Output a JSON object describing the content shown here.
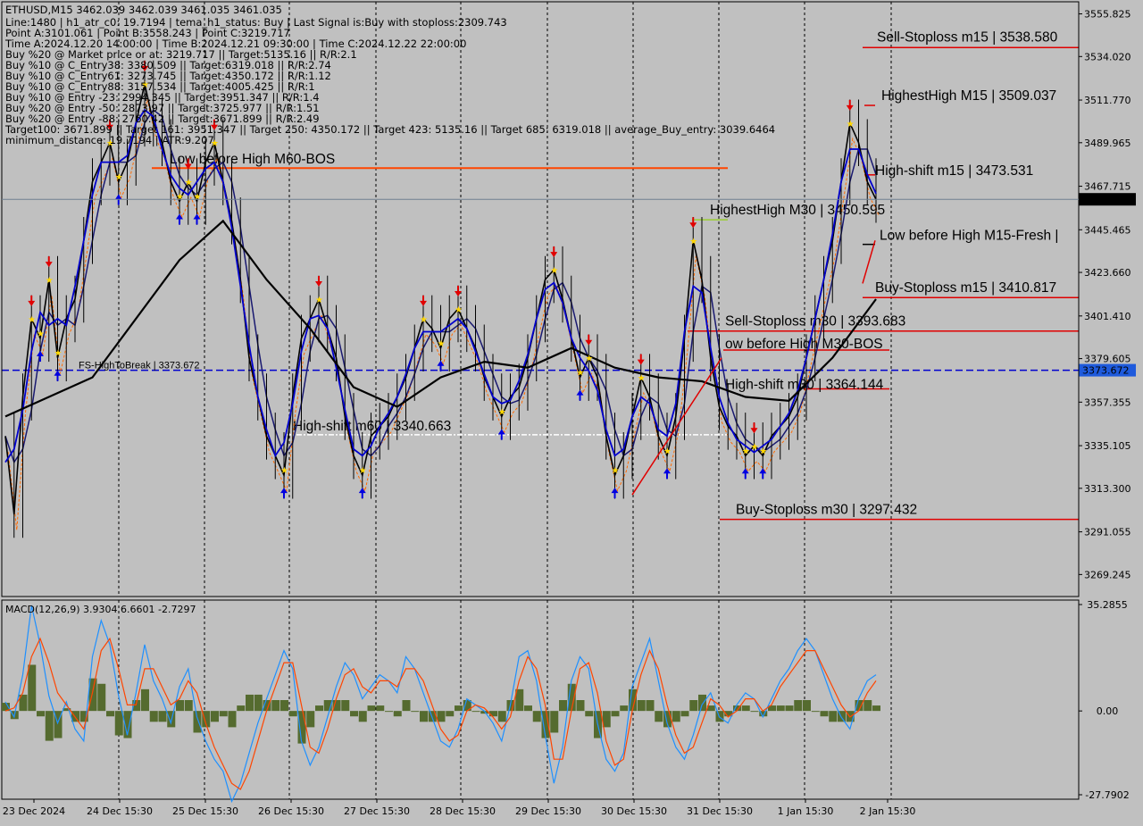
{
  "header": {
    "symbol_line": "ETHUSD,M15  3462.039 3462.039 3461.035 3461.035",
    "lines": [
      "Line:1480 | h1_atr_c0: 19.7194 | tema_h1_status: Buy | Last Signal is:Buy with stoploss:2309.743",
      "Point A:3101.061 | Point B:3558.243 | Point C:3219.717",
      "Time A:2024.12.20 14:00:00 | Time B:2024.12.21 09:30:00 | Time C:2024.12.22 22:00:00",
      "Buy %20 @ Market price or at: 3219.717 || Target:5135.16 || R/R:2.1",
      "Buy %10 @ C_Entry38: 3380.509 || Target:6319.018 || R/R:2.74",
      "Buy %10 @ C_Entry61: 3273.745 || Target:4350.172 || R/R:1.12",
      "Buy %10 @ C_Entry88: 3157.534 || Target:4005.425 || R/R:1",
      "Buy %10 @ Entry -23: 2994.345 || Target:3951.347 || R/R:1.4",
      "Buy %20 @ Entry -50: 2873.97 || Target:3725.977 || R/R:1.51",
      "Buy %20 @ Entry -88: 2760.42 || Target:3671.899 || R/R:2.49",
      "Target100: 3671.899 || Target 161: 3951.347 || Target 250: 4350.172 || Target 423: 5135.16 || Target 685: 6319.018 || average_Buy_entry: 3039.6464",
      "minimum_distance: 19.7194 | ATR:9.207"
    ]
  },
  "chart_data": {
    "type": "line",
    "symbol": "ETHUSD",
    "timeframe": "M15",
    "ohlc_last": {
      "open": 3462.039,
      "high": 3462.039,
      "low": 3461.035,
      "close": 3461.035
    },
    "current_price": "3461.035",
    "ylim": [
      3258,
      3562
    ],
    "y_ticks": [
      "3555.825",
      "3534.020",
      "3511.770",
      "3489.965",
      "3467.715",
      "3445.465",
      "3423.660",
      "3401.410",
      "3379.605",
      "3357.355",
      "3335.105",
      "3313.300",
      "3291.055",
      "3269.245"
    ],
    "x_ticks": [
      "23 Dec 2024",
      "24 Dec 15:30",
      "25 Dec 15:30",
      "26 Dec 15:30",
      "27 Dec 15:30",
      "28 Dec 15:30",
      "29 Dec 15:30",
      "30 Dec 15:30",
      "31 Dec 15:30",
      "1 Jan 15:30",
      "2 Jan 15:30"
    ],
    "price_path": [
      [
        0,
        3340
      ],
      [
        1,
        3300
      ],
      [
        2,
        3360
      ],
      [
        3,
        3400
      ],
      [
        4,
        3390
      ],
      [
        5,
        3420
      ],
      [
        6,
        3380
      ],
      [
        7,
        3400
      ],
      [
        8,
        3410
      ],
      [
        9,
        3440
      ],
      [
        10,
        3470
      ],
      [
        11,
        3480
      ],
      [
        12,
        3490
      ],
      [
        13,
        3470
      ],
      [
        14,
        3480
      ],
      [
        15,
        3500
      ],
      [
        16,
        3520
      ],
      [
        17,
        3500
      ],
      [
        18,
        3490
      ],
      [
        19,
        3470
      ],
      [
        20,
        3460
      ],
      [
        21,
        3470
      ],
      [
        22,
        3460
      ],
      [
        23,
        3480
      ],
      [
        24,
        3490
      ],
      [
        25,
        3470
      ],
      [
        26,
        3450
      ],
      [
        27,
        3420
      ],
      [
        28,
        3380
      ],
      [
        29,
        3360
      ],
      [
        30,
        3340
      ],
      [
        31,
        3330
      ],
      [
        32,
        3320
      ],
      [
        33,
        3360
      ],
      [
        34,
        3390
      ],
      [
        35,
        3400
      ],
      [
        36,
        3410
      ],
      [
        37,
        3395
      ],
      [
        38,
        3380
      ],
      [
        39,
        3350
      ],
      [
        40,
        3330
      ],
      [
        41,
        3320
      ],
      [
        42,
        3340
      ],
      [
        43,
        3345
      ],
      [
        44,
        3350
      ],
      [
        45,
        3360
      ],
      [
        46,
        3370
      ],
      [
        47,
        3385
      ],
      [
        48,
        3400
      ],
      [
        49,
        3395
      ],
      [
        50,
        3385
      ],
      [
        51,
        3400
      ],
      [
        52,
        3405
      ],
      [
        53,
        3395
      ],
      [
        54,
        3385
      ],
      [
        55,
        3370
      ],
      [
        56,
        3360
      ],
      [
        57,
        3350
      ],
      [
        58,
        3360
      ],
      [
        59,
        3365
      ],
      [
        60,
        3380
      ],
      [
        61,
        3400
      ],
      [
        62,
        3420
      ],
      [
        63,
        3425
      ],
      [
        64,
        3410
      ],
      [
        65,
        3390
      ],
      [
        66,
        3370
      ],
      [
        67,
        3380
      ],
      [
        68,
        3370
      ],
      [
        69,
        3340
      ],
      [
        70,
        3320
      ],
      [
        71,
        3330
      ],
      [
        72,
        3350
      ],
      [
        73,
        3370
      ],
      [
        74,
        3360
      ],
      [
        75,
        3340
      ],
      [
        76,
        3330
      ],
      [
        77,
        3350
      ],
      [
        78,
        3390
      ],
      [
        79,
        3440
      ],
      [
        80,
        3420
      ],
      [
        81,
        3380
      ],
      [
        82,
        3355
      ],
      [
        83,
        3345
      ],
      [
        84,
        3340
      ],
      [
        85,
        3330
      ],
      [
        86,
        3335
      ],
      [
        87,
        3330
      ],
      [
        88,
        3340
      ],
      [
        89,
        3345
      ],
      [
        90,
        3350
      ],
      [
        91,
        3360
      ],
      [
        92,
        3380
      ],
      [
        93,
        3400
      ],
      [
        94,
        3420
      ],
      [
        95,
        3440
      ],
      [
        96,
        3470
      ],
      [
        97,
        3500
      ],
      [
        98,
        3490
      ],
      [
        99,
        3470
      ],
      [
        100,
        3461
      ]
    ],
    "moving_average_black": [
      [
        0,
        3350
      ],
      [
        10,
        3370
      ],
      [
        20,
        3430
      ],
      [
        25,
        3450
      ],
      [
        30,
        3420
      ],
      [
        35,
        3395
      ],
      [
        40,
        3365
      ],
      [
        45,
        3355
      ],
      [
        50,
        3370
      ],
      [
        55,
        3378
      ],
      [
        60,
        3375
      ],
      [
        65,
        3385
      ],
      [
        70,
        3375
      ],
      [
        75,
        3370
      ],
      [
        80,
        3368
      ],
      [
        85,
        3360
      ],
      [
        90,
        3358
      ],
      [
        95,
        3380
      ],
      [
        100,
        3410
      ]
    ],
    "levels": [
      {
        "label": "Sell-Stoploss m15 | 3538.580",
        "price": 3538.58,
        "color": "#e00000"
      },
      {
        "label": "HighestHigh   M15 | 3509.037",
        "price": 3509.037,
        "color": "#e00000"
      },
      {
        "label": "Low before High   M60-BOS",
        "price": 3477,
        "color": "#ff4500"
      },
      {
        "label": "High-shift m15 | 3473.531",
        "price": 3473.531,
        "color": "#e00000"
      },
      {
        "label": "HighestHigh   M30 | 3450.595",
        "price": 3450.595,
        "color": "#9acd32"
      },
      {
        "label": "Low before High   M15-Fresh |",
        "price": 3438,
        "color": "#000000"
      },
      {
        "label": "Buy-Stoploss m15 | 3410.817",
        "price": 3410.817,
        "color": "#e00000"
      },
      {
        "label": "Sell-Stoploss m30 | 3393.683",
        "price": 3393.683,
        "color": "#e00000"
      },
      {
        "label": "ow before High   M30-BOS",
        "price": 3384,
        "color": "#e00000"
      },
      {
        "label": "FS-HighToBreak | 3373.672",
        "price": 3373.672,
        "color": "#0000cd"
      },
      {
        "label": "High-shift m30 | 3364.144",
        "price": 3364.144,
        "color": "#e00000"
      },
      {
        "label": "High-shift m60 | 3340.663",
        "price": 3340.663,
        "color": "#ffffff"
      },
      {
        "label": "Buy-Stoploss m30 | 3297.432",
        "price": 3297.432,
        "color": "#e00000"
      }
    ],
    "level_tag": "3373.672",
    "macd": {
      "label": "MACD(12,26,9) 3.9304 6.6601 -2.7297",
      "ylim": [
        -27.7902,
        35.2855
      ],
      "y_ticks": [
        "35.2855",
        "0.00",
        "-27.7902"
      ],
      "main": [
        3,
        -2,
        12,
        35,
        22,
        5,
        -4,
        3,
        -6,
        -10,
        18,
        30,
        22,
        5,
        -8,
        6,
        22,
        10,
        4,
        -4,
        8,
        14,
        -2,
        -10,
        -16,
        -20,
        -30,
        -24,
        -14,
        -4,
        4,
        12,
        20,
        14,
        -10,
        -18,
        -12,
        -2,
        8,
        16,
        12,
        4,
        8,
        12,
        10,
        6,
        18,
        14,
        6,
        -2,
        -10,
        -12,
        -6,
        4,
        2,
        0,
        -4,
        -10,
        2,
        18,
        20,
        10,
        -8,
        -24,
        -12,
        10,
        18,
        14,
        -4,
        -16,
        -20,
        -14,
        8,
        16,
        24,
        10,
        -4,
        -12,
        -16,
        -8,
        2,
        6,
        -2,
        -4,
        2,
        6,
        4,
        -2,
        4,
        10,
        14,
        20,
        24,
        20,
        12,
        4,
        -2,
        -6,
        4,
        10,
        12
      ],
      "signal": [
        0,
        1,
        6,
        18,
        24,
        16,
        6,
        2,
        -2,
        -6,
        6,
        20,
        24,
        14,
        2,
        2,
        14,
        14,
        8,
        2,
        4,
        10,
        6,
        -4,
        -12,
        -18,
        -24,
        -26,
        -20,
        -10,
        0,
        8,
        16,
        16,
        2,
        -12,
        -14,
        -6,
        4,
        12,
        14,
        8,
        6,
        10,
        10,
        8,
        14,
        14,
        10,
        2,
        -6,
        -10,
        -8,
        0,
        2,
        1,
        -2,
        -6,
        -2,
        10,
        18,
        14,
        2,
        -16,
        -16,
        0,
        14,
        16,
        6,
        -10,
        -18,
        -16,
        0,
        12,
        20,
        14,
        2,
        -8,
        -14,
        -12,
        -4,
        4,
        2,
        -2,
        0,
        4,
        4,
        0,
        2,
        8,
        12,
        16,
        20,
        20,
        14,
        8,
        2,
        -2,
        0,
        6,
        10
      ]
    }
  }
}
